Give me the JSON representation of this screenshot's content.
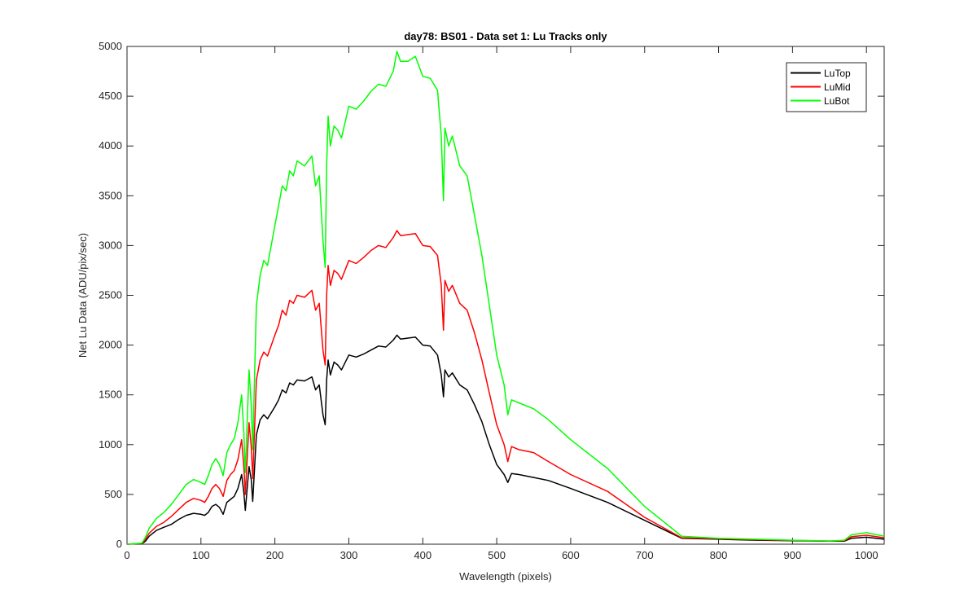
{
  "chart_data": {
    "type": "line",
    "title": "day78: BS01 - Data set 1: Lu Tracks only",
    "xlabel": "Wavelength (pixels)",
    "ylabel": "Net Lu Data (ADU/pix/sec)",
    "xlim": [
      0,
      1024
    ],
    "ylim": [
      0,
      5000
    ],
    "xticks": [
      0,
      100,
      200,
      300,
      400,
      500,
      600,
      700,
      800,
      900,
      1000
    ],
    "yticks": [
      0,
      500,
      1000,
      1500,
      2000,
      2500,
      3000,
      3500,
      4000,
      4500,
      5000
    ],
    "grid": false,
    "legend_position": "top-right",
    "series": [
      {
        "name": "LuTop",
        "color": "#000000",
        "x": [
          0,
          20,
          25,
          30,
          40,
          50,
          60,
          70,
          80,
          90,
          100,
          105,
          110,
          115,
          120,
          125,
          130,
          135,
          140,
          145,
          150,
          155,
          158,
          160,
          163,
          165,
          168,
          170,
          175,
          180,
          185,
          190,
          200,
          205,
          210,
          215,
          220,
          225,
          230,
          240,
          250,
          255,
          260,
          265,
          268,
          270,
          272,
          275,
          280,
          285,
          290,
          300,
          310,
          320,
          330,
          340,
          350,
          360,
          365,
          370,
          380,
          390,
          400,
          410,
          420,
          425,
          428,
          430,
          435,
          440,
          450,
          460,
          470,
          480,
          490,
          500,
          510,
          515,
          520,
          530,
          550,
          570,
          600,
          650,
          700,
          750,
          800,
          850,
          900,
          950,
          970,
          980,
          1000,
          1024
        ],
        "values": [
          0,
          5,
          30,
          80,
          140,
          170,
          200,
          250,
          290,
          310,
          300,
          290,
          320,
          380,
          400,
          370,
          300,
          420,
          450,
          480,
          560,
          700,
          520,
          340,
          600,
          780,
          650,
          430,
          1100,
          1250,
          1300,
          1260,
          1380,
          1450,
          1550,
          1520,
          1620,
          1600,
          1650,
          1640,
          1680,
          1550,
          1600,
          1300,
          1200,
          1650,
          1850,
          1700,
          1830,
          1800,
          1750,
          1900,
          1880,
          1910,
          1950,
          1990,
          1980,
          2050,
          2100,
          2060,
          2070,
          2080,
          2000,
          1990,
          1900,
          1700,
          1480,
          1750,
          1680,
          1720,
          1600,
          1550,
          1400,
          1230,
          1000,
          800,
          700,
          620,
          710,
          700,
          670,
          640,
          560,
          420,
          240,
          60,
          50,
          40,
          35,
          30,
          30,
          60,
          70,
          50
        ]
      },
      {
        "name": "LuMid",
        "color": "#ff0000",
        "x": [
          0,
          20,
          25,
          30,
          40,
          50,
          60,
          70,
          80,
          90,
          100,
          105,
          110,
          115,
          120,
          125,
          130,
          135,
          140,
          145,
          150,
          155,
          158,
          160,
          163,
          165,
          168,
          170,
          175,
          180,
          185,
          190,
          200,
          205,
          210,
          215,
          220,
          225,
          230,
          240,
          250,
          255,
          260,
          265,
          268,
          270,
          272,
          275,
          280,
          285,
          290,
          300,
          310,
          320,
          330,
          340,
          350,
          360,
          365,
          370,
          380,
          390,
          400,
          410,
          420,
          425,
          428,
          430,
          435,
          440,
          450,
          460,
          470,
          480,
          490,
          500,
          510,
          515,
          520,
          530,
          550,
          570,
          600,
          650,
          700,
          750,
          800,
          850,
          900,
          950,
          970,
          980,
          1000,
          1024
        ],
        "values": [
          0,
          8,
          50,
          110,
          180,
          220,
          280,
          350,
          420,
          460,
          440,
          420,
          480,
          560,
          600,
          560,
          480,
          640,
          700,
          740,
          850,
          1050,
          780,
          500,
          920,
          1220,
          980,
          660,
          1650,
          1850,
          1930,
          1890,
          2100,
          2200,
          2350,
          2300,
          2450,
          2420,
          2500,
          2480,
          2550,
          2350,
          2420,
          1950,
          1800,
          2500,
          2800,
          2600,
          2750,
          2720,
          2660,
          2850,
          2820,
          2880,
          2950,
          3000,
          2980,
          3080,
          3150,
          3100,
          3110,
          3120,
          3000,
          2990,
          2900,
          2600,
          2150,
          2650,
          2540,
          2600,
          2420,
          2350,
          2120,
          1850,
          1520,
          1200,
          1000,
          830,
          980,
          950,
          920,
          830,
          700,
          530,
          270,
          65,
          55,
          45,
          38,
          32,
          35,
          75,
          90,
          65
        ]
      },
      {
        "name": "LuBot",
        "color": "#00ff00",
        "x": [
          0,
          20,
          25,
          30,
          40,
          50,
          60,
          70,
          80,
          90,
          100,
          105,
          110,
          115,
          120,
          125,
          130,
          135,
          140,
          145,
          150,
          155,
          158,
          160,
          163,
          165,
          168,
          170,
          175,
          180,
          185,
          190,
          200,
          205,
          210,
          215,
          220,
          225,
          230,
          240,
          250,
          255,
          260,
          265,
          268,
          270,
          272,
          275,
          280,
          285,
          290,
          300,
          310,
          320,
          330,
          340,
          350,
          360,
          365,
          370,
          380,
          390,
          400,
          410,
          420,
          425,
          428,
          430,
          435,
          440,
          450,
          460,
          470,
          480,
          490,
          500,
          510,
          515,
          520,
          530,
          550,
          570,
          600,
          650,
          700,
          750,
          800,
          850,
          900,
          950,
          970,
          980,
          1000,
          1024
        ],
        "values": [
          0,
          10,
          70,
          160,
          260,
          320,
          400,
          500,
          600,
          650,
          620,
          600,
          690,
          800,
          860,
          800,
          690,
          920,
          1000,
          1060,
          1220,
          1500,
          1120,
          720,
          1320,
          1750,
          1400,
          950,
          2400,
          2700,
          2850,
          2800,
          3200,
          3400,
          3600,
          3550,
          3750,
          3700,
          3850,
          3800,
          3900,
          3600,
          3700,
          3050,
          2780,
          3800,
          4300,
          4000,
          4200,
          4160,
          4080,
          4400,
          4370,
          4450,
          4550,
          4620,
          4600,
          4750,
          4950,
          4850,
          4850,
          4900,
          4700,
          4680,
          4560,
          4100,
          3450,
          4180,
          4000,
          4100,
          3800,
          3700,
          3300,
          2900,
          2400,
          1900,
          1600,
          1300,
          1450,
          1420,
          1360,
          1250,
          1050,
          760,
          380,
          80,
          60,
          50,
          40,
          32,
          40,
          95,
          115,
          80
        ]
      }
    ]
  }
}
